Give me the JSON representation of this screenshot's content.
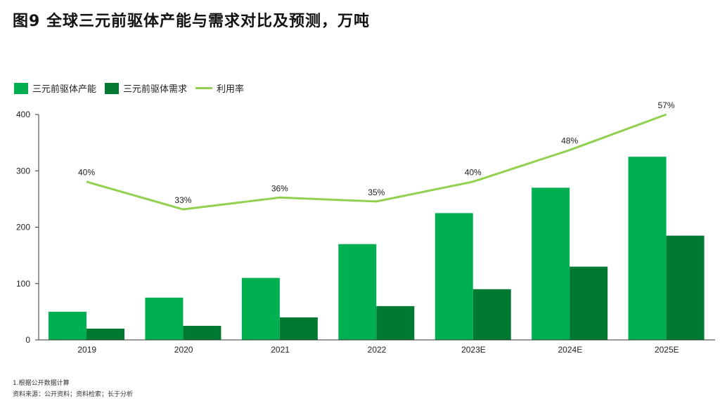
{
  "title": "图9 全球三元前驱体产能与需求对比及预测，万吨",
  "colors": {
    "capacity": "#00B050",
    "demand": "#007A33",
    "rate": "#92D050",
    "axis": "#333333"
  },
  "legend": {
    "capacity": "三元前驱体产能",
    "demand": "三元前驱体需求",
    "rate": "利用率"
  },
  "chart_data": {
    "type": "bar",
    "title": "全球三元前驱体产能与需求对比及预测，万吨",
    "categories": [
      "2019",
      "2020",
      "2021",
      "2022",
      "2023E",
      "2024E",
      "2025E"
    ],
    "series": [
      {
        "name": "三元前驱体产能",
        "type": "bar",
        "values": [
          50,
          75,
          110,
          170,
          225,
          270,
          325
        ]
      },
      {
        "name": "三元前驱体需求",
        "type": "bar",
        "values": [
          20,
          25,
          40,
          60,
          90,
          130,
          185
        ]
      },
      {
        "name": "利用率",
        "type": "line",
        "values": [
          40,
          33,
          36,
          35,
          40,
          48,
          57
        ],
        "labels": [
          "40%",
          "33%",
          "36%",
          "35%",
          "40%",
          "48%",
          "57%"
        ]
      }
    ],
    "ylim": [
      0,
      400
    ],
    "yticks": [
      "0",
      "100",
      "200",
      "300",
      "400"
    ],
    "rate_ylim": [
      0,
      57
    ]
  },
  "footnotes": {
    "note": "1.根据公开数据计算",
    "source": "资料来源：公开资料；资料检索；长于分析"
  }
}
